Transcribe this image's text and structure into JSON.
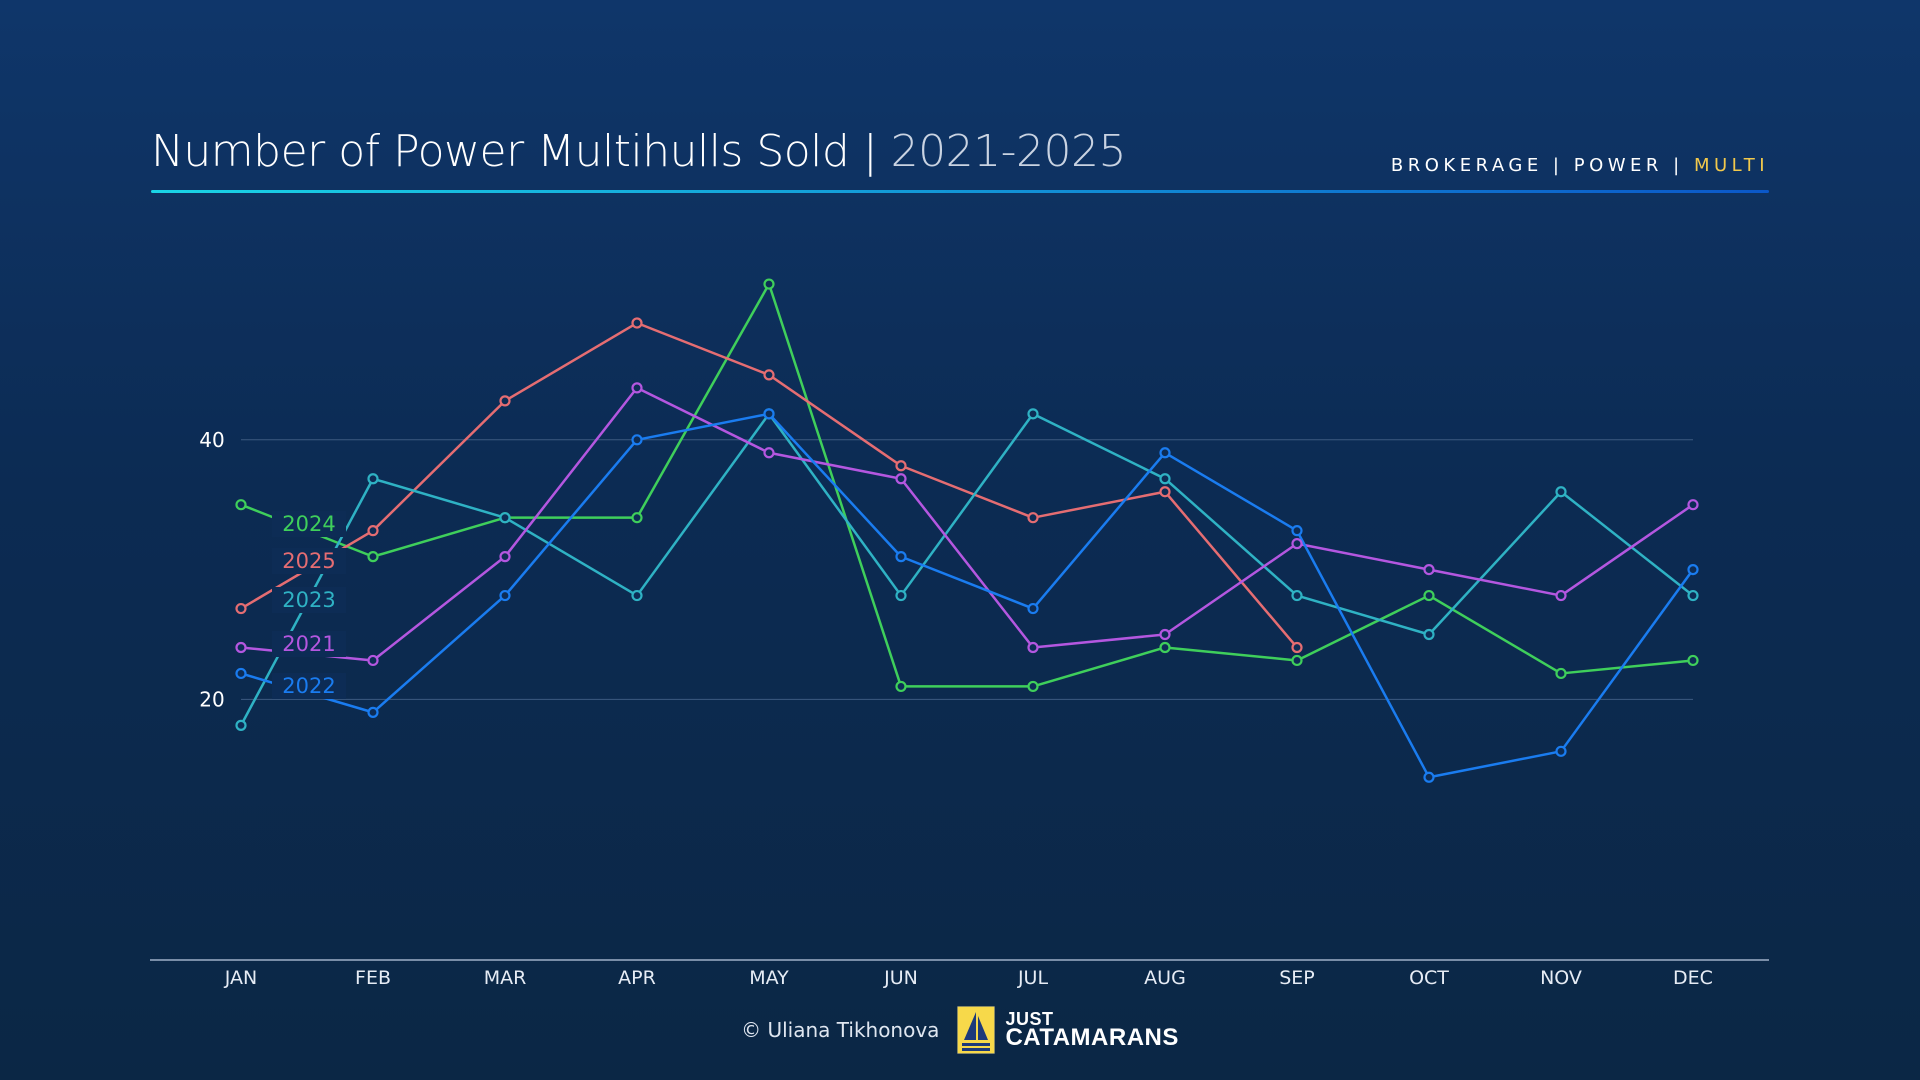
{
  "header": {
    "title": "Number of Power Multihulls Sold",
    "separator": " | ",
    "subtitle": "2021-2025",
    "tags": {
      "a": "BROKERAGE",
      "sep": " | ",
      "b": "POWER",
      "c": "MULTI"
    }
  },
  "colors": {
    "accent": "#f2c94c",
    "2021": "#b457e0",
    "2022": "#1a7cf0",
    "2023": "#2fb2c4",
    "2024": "#3fcf5b",
    "2025": "#e56d72"
  },
  "chart_data": {
    "type": "line",
    "categories": [
      "JAN",
      "FEB",
      "MAR",
      "APR",
      "MAY",
      "JUN",
      "JUL",
      "AUG",
      "SEP",
      "OCT",
      "NOV",
      "DEC"
    ],
    "yticks": [
      20,
      40
    ],
    "ylim": [
      0,
      60
    ],
    "grid": true,
    "legend": "inline-left",
    "series": [
      {
        "name": "2024",
        "color": "#3fcf5b",
        "values": [
          35,
          31,
          34,
          34,
          52,
          21,
          21,
          24,
          23,
          28,
          22,
          23
        ]
      },
      {
        "name": "2025",
        "color": "#e56d72",
        "values": [
          27,
          33,
          43,
          49,
          45,
          38,
          34,
          36,
          24,
          null,
          null,
          null
        ]
      },
      {
        "name": "2023",
        "color": "#2fb2c4",
        "values": [
          18,
          37,
          34,
          28,
          42,
          28,
          42,
          37,
          28,
          25,
          36,
          28
        ]
      },
      {
        "name": "2021",
        "color": "#b457e0",
        "values": [
          24,
          23,
          31,
          44,
          39,
          37,
          24,
          25,
          32,
          30,
          28,
          35
        ]
      },
      {
        "name": "2022",
        "color": "#1a7cf0",
        "values": [
          22,
          19,
          28,
          40,
          42,
          31,
          27,
          39,
          33,
          14,
          16,
          30
        ]
      }
    ]
  },
  "footer": {
    "credit": "© Uliana Tikhonova",
    "logo_line1": "JUST",
    "logo_line2": "CATAMARANS"
  }
}
